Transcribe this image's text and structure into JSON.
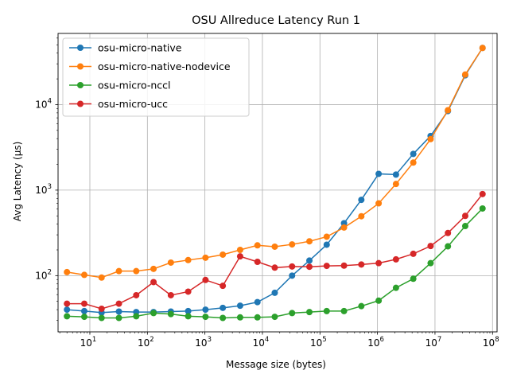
{
  "chart_data": {
    "type": "line",
    "title": "OSU Allreduce Latency Run 1",
    "xlabel": "Message size (bytes)",
    "ylabel": "Avg Latency (µs)",
    "x_scale": "log",
    "y_scale": "log",
    "xlim": [
      2.8,
      120000000
    ],
    "ylim": [
      22,
      68000
    ],
    "grid": true,
    "legend_position": "top-left",
    "x": [
      4,
      8,
      16,
      32,
      64,
      128,
      256,
      512,
      1024,
      2048,
      4096,
      8192,
      16384,
      32768,
      65536,
      131072,
      262144,
      524288,
      1048576,
      2097152,
      4194304,
      8388608,
      16777216,
      33554432,
      67108864
    ],
    "series": [
      {
        "name": "osu-micro-native",
        "color": "#1f77b4",
        "values": [
          40,
          38.5,
          37,
          38,
          37.5,
          37.5,
          38,
          38.5,
          40,
          42,
          44.5,
          49,
          63,
          100,
          150,
          230,
          410,
          770,
          1550,
          1520,
          2650,
          4300,
          8400,
          22000,
          46000
        ]
      },
      {
        "name": "osu-micro-native-nodevice",
        "color": "#ff7f0e",
        "values": [
          110,
          102,
          95,
          113,
          113,
          120,
          142,
          152,
          162,
          176,
          200,
          226,
          218,
          232,
          252,
          285,
          365,
          495,
          700,
          1180,
          2100,
          3950,
          8600,
          22500,
          46000
        ]
      },
      {
        "name": "osu-micro-nccl",
        "color": "#2ca02c",
        "values": [
          33.5,
          33,
          32,
          32,
          33.5,
          36.5,
          35.5,
          33.5,
          33,
          32,
          32.5,
          32.5,
          33,
          36.5,
          37.5,
          38.5,
          38.5,
          44,
          51,
          72,
          92,
          140,
          220,
          380,
          610
        ]
      },
      {
        "name": "osu-micro-ucc",
        "color": "#d62728",
        "values": [
          47,
          47,
          41,
          47,
          59,
          84,
          59,
          65,
          89,
          76,
          168,
          145,
          124,
          128,
          127,
          130,
          131,
          135,
          140,
          155,
          180,
          222,
          315,
          500,
          900
        ]
      }
    ],
    "x_ticks": [
      {
        "value": 10,
        "base": "10",
        "exp": "1"
      },
      {
        "value": 100,
        "base": "10",
        "exp": "2"
      },
      {
        "value": 1000,
        "base": "10",
        "exp": "3"
      },
      {
        "value": 10000,
        "base": "10",
        "exp": "4"
      },
      {
        "value": 100000,
        "base": "10",
        "exp": "5"
      },
      {
        "value": 1000000,
        "base": "10",
        "exp": "6"
      },
      {
        "value": 10000000,
        "base": "10",
        "exp": "7"
      },
      {
        "value": 100000000,
        "base": "10",
        "exp": "8"
      }
    ],
    "y_ticks": [
      {
        "value": 100,
        "base": "10",
        "exp": "2"
      },
      {
        "value": 1000,
        "base": "10",
        "exp": "3"
      },
      {
        "value": 10000,
        "base": "10",
        "exp": "4"
      }
    ]
  }
}
